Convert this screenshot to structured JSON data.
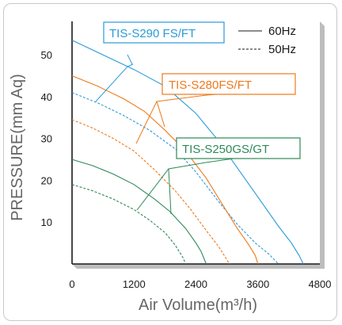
{
  "chart_data": {
    "type": "line",
    "xlabel": "Air Volume(m³/h)",
    "ylabel": "PRESSURE(mm Aq)",
    "xlim": [
      0,
      4800
    ],
    "ylim": [
      0,
      58
    ],
    "x_ticks": [
      "0",
      "1200",
      "2400",
      "3600",
      "4800"
    ],
    "y_ticks": [
      "10",
      "20",
      "30",
      "40",
      "50"
    ],
    "grid": false,
    "legend": {
      "position": "top-right",
      "entries": [
        {
          "label": "60Hz",
          "style": "solid"
        },
        {
          "label": "50Hz",
          "style": "dashed"
        }
      ]
    },
    "models": [
      {
        "name": "TIS-S290 FS/FT",
        "color": "#2a9ad8"
      },
      {
        "name": "TIS-S280FS/FT",
        "color": "#ec7a1c"
      },
      {
        "name": "TIS-S250GS/GT",
        "color": "#2d8a58"
      }
    ],
    "series": [
      {
        "model": "TIS-S290 FS/FT",
        "freq": "60Hz",
        "points": [
          [
            0,
            53.5
          ],
          [
            600,
            50
          ],
          [
            1200,
            46.5
          ],
          [
            1800,
            42.5
          ],
          [
            2400,
            36
          ],
          [
            2800,
            30
          ],
          [
            3200,
            23
          ],
          [
            3600,
            16
          ],
          [
            4000,
            9
          ],
          [
            4250,
            5
          ],
          [
            4400,
            2
          ],
          [
            4480,
            0
          ]
        ]
      },
      {
        "model": "TIS-S290 FS/FT",
        "freq": "50Hz",
        "points": [
          [
            0,
            41
          ],
          [
            500,
            38.5
          ],
          [
            1000,
            35.5
          ],
          [
            1500,
            32
          ],
          [
            2000,
            27.5
          ],
          [
            2400,
            22
          ],
          [
            2800,
            15.5
          ],
          [
            3200,
            9.5
          ],
          [
            3550,
            5
          ],
          [
            3800,
            2.5
          ],
          [
            4000,
            0
          ]
        ]
      },
      {
        "model": "TIS-S280FS/FT",
        "freq": "60Hz",
        "points": [
          [
            0,
            45
          ],
          [
            500,
            42.5
          ],
          [
            1000,
            39.5
          ],
          [
            1400,
            36.5
          ],
          [
            1800,
            32
          ],
          [
            2200,
            27
          ],
          [
            2600,
            20.5
          ],
          [
            2900,
            14.5
          ],
          [
            3200,
            8.5
          ],
          [
            3400,
            5
          ],
          [
            3550,
            2
          ],
          [
            3600,
            0
          ]
        ]
      },
      {
        "model": "TIS-S280FS/FT",
        "freq": "50Hz",
        "points": [
          [
            0,
            34.5
          ],
          [
            400,
            32.5
          ],
          [
            800,
            30
          ],
          [
            1200,
            27
          ],
          [
            1600,
            22.5
          ],
          [
            2000,
            17.5
          ],
          [
            2300,
            13
          ],
          [
            2600,
            8
          ],
          [
            2850,
            4
          ],
          [
            3000,
            1
          ],
          [
            3050,
            0
          ]
        ]
      },
      {
        "model": "TIS-S250GS/GT",
        "freq": "60Hz",
        "points": [
          [
            0,
            25
          ],
          [
            400,
            23.5
          ],
          [
            800,
            21.5
          ],
          [
            1200,
            19
          ],
          [
            1600,
            15.5
          ],
          [
            1900,
            12.5
          ],
          [
            2200,
            8.5
          ],
          [
            2400,
            5
          ],
          [
            2500,
            3
          ],
          [
            2600,
            0
          ]
        ]
      },
      {
        "model": "TIS-S250GS/GT",
        "freq": "50Hz",
        "points": [
          [
            0,
            19
          ],
          [
            400,
            17.5
          ],
          [
            800,
            15.5
          ],
          [
            1200,
            13
          ],
          [
            1500,
            10.5
          ],
          [
            1800,
            7.5
          ],
          [
            2000,
            4.5
          ],
          [
            2150,
            1.5
          ],
          [
            2200,
            0
          ]
        ]
      }
    ]
  }
}
